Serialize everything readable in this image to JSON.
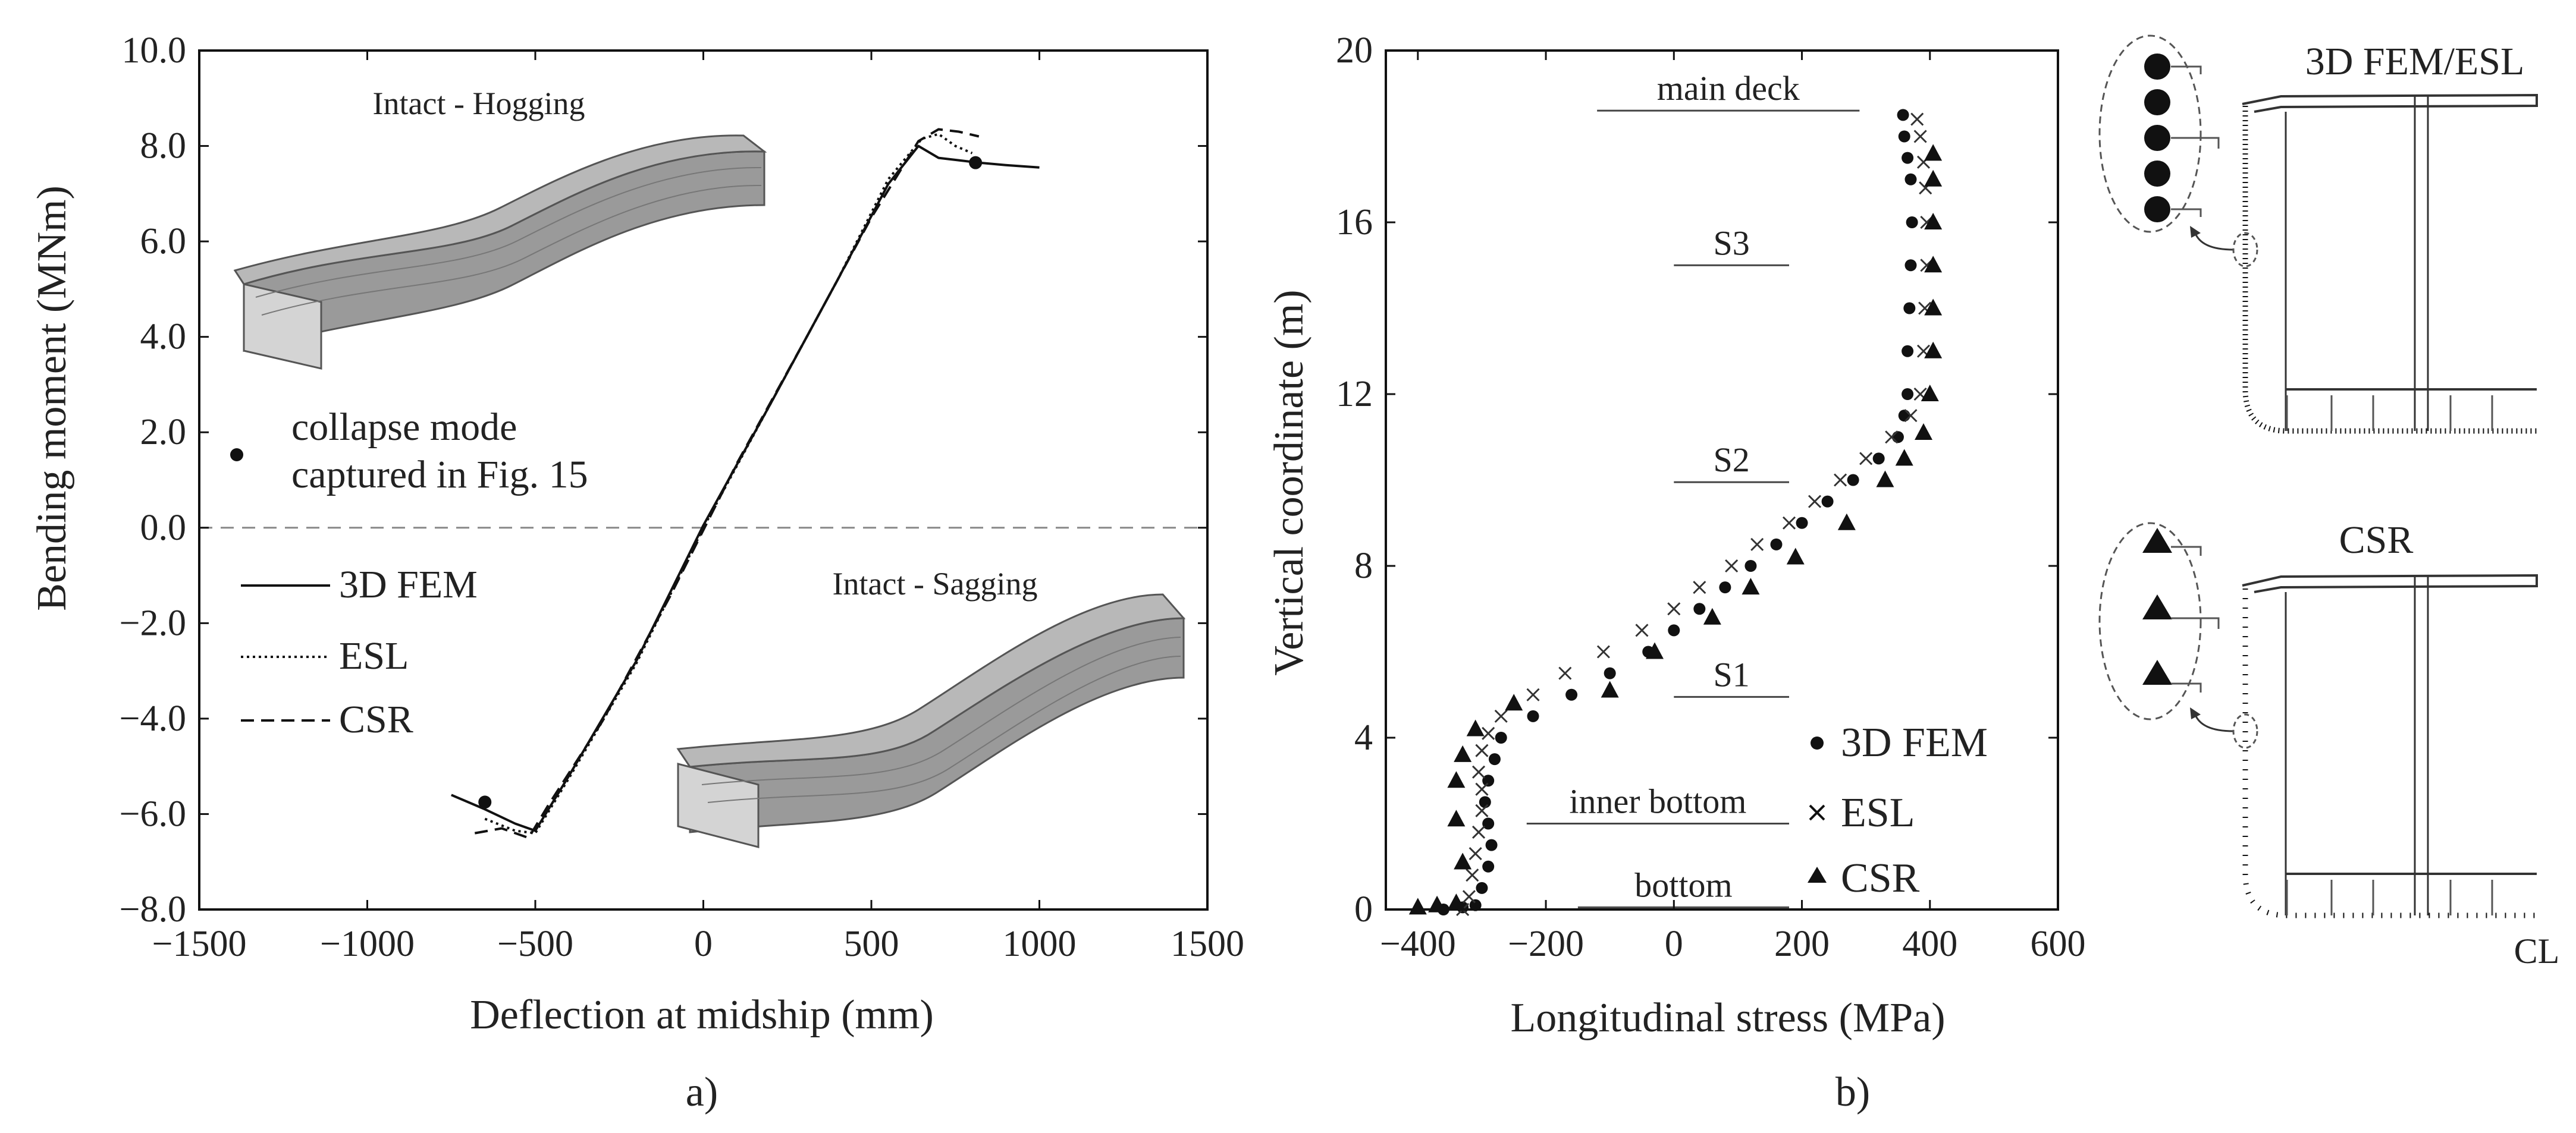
{
  "chart_data": [
    {
      "type": "line",
      "panel_label": "a)",
      "title": "",
      "xlabel": "Deflection at midship (mm)",
      "ylabel": "Bending moment (MNm)",
      "xlim": [
        -1500,
        1500
      ],
      "ylim": [
        -8.0,
        10.0
      ],
      "x_ticks": [
        -1500,
        -1000,
        -500,
        0,
        500,
        1000,
        1500
      ],
      "x_tick_labels": [
        "−1500",
        "−1000",
        "−500",
        "0",
        "500",
        "1000",
        "1500"
      ],
      "y_ticks": [
        -8,
        -6,
        -4,
        -2,
        0,
        2,
        4,
        6,
        8,
        10
      ],
      "y_tick_labels": [
        "−8.0",
        "−6.0",
        "−4.0",
        "−2.0",
        "0.0",
        "2.0",
        "4.0",
        "6.0",
        "8.0",
        "10.0"
      ],
      "zero_line": true,
      "series": [
        {
          "name": "3D FEM",
          "style": "solid",
          "x": [
            -750,
            -650,
            -560,
            -500,
            -400,
            -200,
            0,
            200,
            400,
            550,
            640,
            700,
            760,
            820,
            900,
            1000
          ],
          "y": [
            -5.6,
            -5.9,
            -6.2,
            -6.35,
            -5.2,
            -2.8,
            0.05,
            2.6,
            5.2,
            7.2,
            8.0,
            7.75,
            7.7,
            7.65,
            7.6,
            7.55
          ]
        },
        {
          "name": "ESL",
          "style": "dotted",
          "x": [
            -650,
            -560,
            -500,
            -400,
            -200,
            0,
            200,
            400,
            550,
            650,
            700,
            750,
            800
          ],
          "y": [
            -6.1,
            -6.35,
            -6.4,
            -5.25,
            -2.85,
            0.0,
            2.6,
            5.2,
            7.3,
            8.15,
            8.25,
            8.0,
            7.85
          ]
        },
        {
          "name": "CSR",
          "style": "dashed",
          "x": [
            -680,
            -600,
            -520,
            -460,
            -300,
            -100,
            100,
            300,
            500,
            640,
            700,
            760,
            820
          ],
          "y": [
            -6.4,
            -6.3,
            -6.5,
            -5.8,
            -4.05,
            -1.45,
            1.35,
            3.9,
            6.5,
            8.1,
            8.35,
            8.3,
            8.2
          ]
        }
      ],
      "markers": [
        {
          "label": "collapse mode captured in Fig. 15",
          "x": 810,
          "y": 7.65
        },
        {
          "label": "collapse mode captured in Fig. 15",
          "x": -650,
          "y": -5.75
        }
      ],
      "legend": {
        "marker_text_line1": "collapse mode",
        "marker_text_line2": "captured in Fig. 15",
        "entries": [
          "3D FEM",
          "ESL",
          "CSR"
        ]
      },
      "annotations": {
        "hogging": "Intact - Hogging",
        "sagging": "Intact - Sagging"
      }
    },
    {
      "type": "scatter",
      "panel_label": "b)",
      "title": "",
      "xlabel": "Longitudinal stress (MPa)",
      "ylabel": "Vertical coordinate (m)",
      "xlim": [
        -450,
        600
      ],
      "ylim": [
        0,
        20
      ],
      "x_ticks": [
        -400,
        -200,
        0,
        200,
        400,
        600
      ],
      "x_tick_labels": [
        "−400",
        "−200",
        "0",
        "200",
        "400",
        "600"
      ],
      "y_ticks": [
        0,
        4,
        8,
        12,
        16,
        20
      ],
      "y_tick_labels": [
        "0",
        "4",
        "8",
        "12",
        "16",
        "20"
      ],
      "levels": [
        {
          "label": "main deck",
          "y": 18.6,
          "x_from": -120,
          "x_to": 290
        },
        {
          "label": "S3",
          "y": 15.0,
          "x_from": 0,
          "x_to": 180
        },
        {
          "label": "S2",
          "y": 9.95,
          "x_from": 0,
          "x_to": 180
        },
        {
          "label": "S1",
          "y": 4.95,
          "x_from": 0,
          "x_to": 180
        },
        {
          "label": "inner bottom",
          "y": 2.0,
          "x_from": -230,
          "x_to": 180
        },
        {
          "label": "bottom",
          "y": 0.05,
          "x_from": -150,
          "x_to": 180
        }
      ],
      "series": [
        {
          "name": "3D FEM",
          "marker": "circle",
          "x": [
            -360,
            -330,
            -310,
            -300,
            -290,
            -285,
            -290,
            -295,
            -290,
            -280,
            -270,
            -220,
            -160,
            -100,
            -40,
            0,
            40,
            80,
            120,
            160,
            200,
            240,
            280,
            320,
            350,
            360,
            365,
            365,
            368,
            370,
            372,
            370,
            365,
            360,
            358
          ],
          "y": [
            0.0,
            0.05,
            0.1,
            0.5,
            1.0,
            1.5,
            2.0,
            2.5,
            3.0,
            3.5,
            4.0,
            4.5,
            5.0,
            5.5,
            6.0,
            6.5,
            7.0,
            7.5,
            8.0,
            8.5,
            9.0,
            9.5,
            10.0,
            10.5,
            11.0,
            11.5,
            12.0,
            13.0,
            14.0,
            15.0,
            16.0,
            17.0,
            17.5,
            18.0,
            18.5
          ]
        },
        {
          "name": "ESL",
          "marker": "x",
          "x": [
            -330,
            -320,
            -315,
            -310,
            -305,
            -300,
            -300,
            -305,
            -300,
            -290,
            -270,
            -220,
            -170,
            -110,
            -50,
            0,
            40,
            90,
            130,
            180,
            220,
            260,
            300,
            340,
            370,
            385,
            390,
            392,
            395,
            395,
            393,
            390,
            385,
            380
          ],
          "y": [
            0.0,
            0.3,
            0.8,
            1.3,
            1.8,
            2.3,
            2.8,
            3.2,
            3.7,
            4.1,
            4.5,
            5.0,
            5.5,
            6.0,
            6.5,
            7.0,
            7.5,
            8.0,
            8.5,
            9.0,
            9.5,
            10.0,
            10.5,
            11.0,
            11.5,
            12.0,
            13.0,
            14.0,
            15.0,
            16.0,
            16.8,
            17.4,
            18.0,
            18.4
          ]
        },
        {
          "name": "CSR",
          "marker": "triangle",
          "x": [
            -400,
            -370,
            -340,
            -330,
            -340,
            -340,
            -330,
            -310,
            -250,
            -100,
            -30,
            60,
            120,
            190,
            270,
            330,
            360,
            390,
            400,
            405,
            405,
            405,
            405,
            405,
            405
          ],
          "y": [
            0.05,
            0.1,
            0.15,
            1.1,
            2.1,
            3.0,
            3.6,
            4.2,
            4.8,
            5.1,
            6.0,
            6.8,
            7.5,
            8.2,
            9.0,
            10.0,
            10.5,
            11.1,
            12.0,
            13.0,
            14.0,
            15.0,
            16.0,
            17.0,
            17.6
          ]
        }
      ],
      "legend": {
        "entries": [
          "3D FEM",
          "ESL",
          "CSR"
        ],
        "placement": "bottom-right"
      }
    }
  ],
  "sections": {
    "top_label": "3D FEM/ESL",
    "bottom_label": "CSR",
    "cl_label": "CL"
  }
}
